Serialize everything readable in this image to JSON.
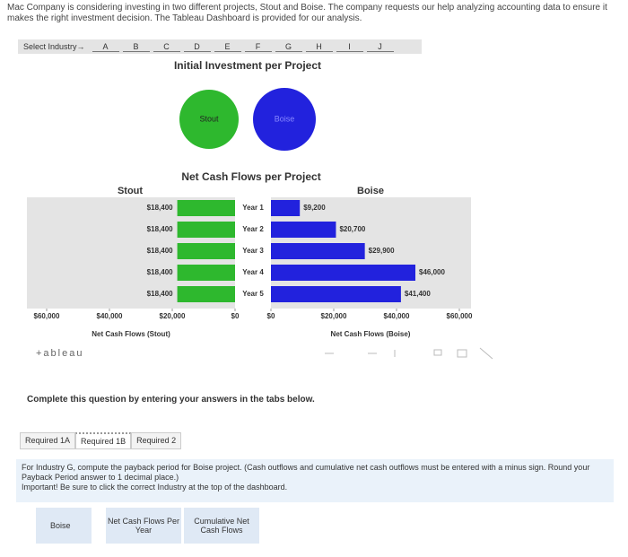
{
  "question": {
    "intro": "Mac Company is considering investing in two different projects, Stout and Boise. The company requests our help analyzing accounting data to ensure it makes the right investment decision. The Tableau Dashboard is provided for our analysis."
  },
  "dashboard": {
    "selector_label": "Select Industry→",
    "industries": [
      "A",
      "B",
      "C",
      "D",
      "E",
      "F",
      "G",
      "H",
      "I",
      "J"
    ],
    "investment_title": "Initial Investment per Project",
    "bubbles": [
      {
        "label": "Stout",
        "color": "#2eb82e"
      },
      {
        "label": "Boise",
        "color": "#2222dd"
      }
    ],
    "logo": "+ableau"
  },
  "chart_data": {
    "type": "bar",
    "title": "Net Cash Flows per Project",
    "categories": [
      "Year 1",
      "Year 2",
      "Year 3",
      "Year 4",
      "Year 5"
    ],
    "series": [
      {
        "name": "Stout",
        "color": "#2eb82e",
        "axis_label": "Net Cash Flows (Stout)",
        "values": [
          18400,
          18400,
          18400,
          18400,
          18400
        ],
        "value_labels": [
          "$18,400",
          "$18,400",
          "$18,400",
          "$18,400",
          "$18,400"
        ]
      },
      {
        "name": "Boise",
        "color": "#2222dd",
        "axis_label": "Net Cash Flows (Boise)",
        "values": [
          9200,
          20700,
          29900,
          46000,
          41400
        ],
        "value_labels": [
          "$9,200",
          "$20,700",
          "$29,900",
          "$46,000",
          "$41,400"
        ]
      }
    ],
    "xlim": [
      0,
      60000
    ],
    "xticks": [
      {
        "value": 0,
        "label": "$0"
      },
      {
        "value": 20000,
        "label": "$20,000"
      },
      {
        "value": 40000,
        "label": "$40,000"
      },
      {
        "value": 60000,
        "label": "$60,000"
      }
    ]
  },
  "task": {
    "prompt": "Complete this question by entering your answers in the tabs below.",
    "tabs": [
      "Required 1A",
      "Required 1B",
      "Required 2"
    ],
    "instruction": "For Industry G, compute the payback period for Boise project. (Cash outflows and cumulative net cash outflows must be entered with a minus sign. Round your Payback Period answer to 1 decimal place.)",
    "important": "Important! Be sure to click the correct Industry at the top of the dashboard.",
    "table_headers": [
      "Boise",
      "Net Cash Flows Per Year",
      "Cumulative Net Cash Flows"
    ]
  }
}
